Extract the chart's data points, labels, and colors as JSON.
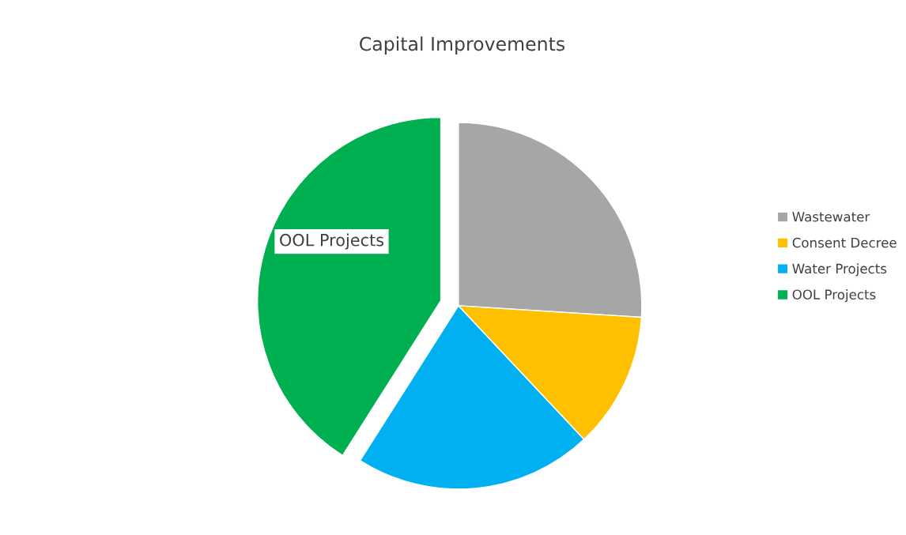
{
  "chart_data": {
    "type": "pie",
    "title": "Capital Improvements",
    "categories": [
      "Wastewater",
      "Consent Decree",
      "Water Projects",
      "OOL Projects"
    ],
    "values": [
      26,
      12,
      21,
      41
    ],
    "colors": [
      "#a6a6a6",
      "#ffc000",
      "#00b0f0",
      "#00b050"
    ],
    "annotations": [
      "OOL Projects"
    ],
    "legend": "right"
  }
}
